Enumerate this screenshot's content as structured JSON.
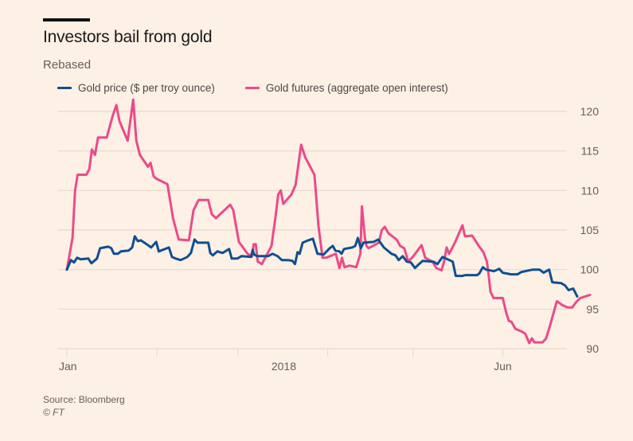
{
  "header": {
    "title": "Investors bail from gold",
    "subtitle": "Rebased"
  },
  "footer": {
    "source": "Source: Bloomberg",
    "copyright": "© FT"
  },
  "colors": {
    "background": "#fdf0e4",
    "gold_price": "#0f4f91",
    "gold_futures": "#ec4a8a",
    "grid": "#e6d9ce"
  },
  "chart_data": {
    "type": "line",
    "title": "Investors bail from gold",
    "subtitle": "Rebased",
    "xlabel": "",
    "ylabel": "",
    "ylim": [
      90,
      120
    ],
    "yticks": [
      90,
      95,
      100,
      105,
      110,
      115,
      120
    ],
    "y_axis_position": "right",
    "grid": true,
    "legend_position": "top-left",
    "x_domain": [
      0,
      100
    ],
    "x_tick_positions": [
      0,
      17.6,
      33.5,
      51.1,
      67.8,
      85.4
    ],
    "x_tick_labels": [
      {
        "at": 0,
        "label": "Jan"
      },
      {
        "at": 42.5,
        "label": "2018"
      },
      {
        "at": 85.4,
        "label": "Jun"
      }
    ],
    "series": [
      {
        "name": "Gold price ($ per troy ounce)",
        "color": "#0f4f91",
        "points": [
          [
            0,
            100
          ],
          [
            0.8,
            101.2
          ],
          [
            1.4,
            100.9
          ],
          [
            2.0,
            101.5
          ],
          [
            2.7,
            101.3
          ],
          [
            4.2,
            101.4
          ],
          [
            4.8,
            100.8
          ],
          [
            5.9,
            101.4
          ],
          [
            6.5,
            102.7
          ],
          [
            8.1,
            102.9
          ],
          [
            8.7,
            102.7
          ],
          [
            9.2,
            102.0
          ],
          [
            10.0,
            102.0
          ],
          [
            10.6,
            102.3
          ],
          [
            12.1,
            102.4
          ],
          [
            12.8,
            102.8
          ],
          [
            13.3,
            104.2
          ],
          [
            13.9,
            103.6
          ],
          [
            14.5,
            103.7
          ],
          [
            16.1,
            103.0
          ],
          [
            16.5,
            102.8
          ],
          [
            17.5,
            103.5
          ],
          [
            18.0,
            102.3
          ],
          [
            20.0,
            102.8
          ],
          [
            20.6,
            101.6
          ],
          [
            21.3,
            101.4
          ],
          [
            22.3,
            101.2
          ],
          [
            23.6,
            101.6
          ],
          [
            24.3,
            102.1
          ],
          [
            25.0,
            103.8
          ],
          [
            25.6,
            103.4
          ],
          [
            27.7,
            103.4
          ],
          [
            28.1,
            102.1
          ],
          [
            28.6,
            101.8
          ],
          [
            29.5,
            102.3
          ],
          [
            30.5,
            102.1
          ],
          [
            31.8,
            102.6
          ],
          [
            32.3,
            101.4
          ],
          [
            33.4,
            101.4
          ],
          [
            34.2,
            101.7
          ],
          [
            36.1,
            101.6
          ],
          [
            36.4,
            102.5
          ],
          [
            36.7,
            101.9
          ],
          [
            37.3,
            101.7
          ],
          [
            38.3,
            101.7
          ],
          [
            39.4,
            101.7
          ],
          [
            40.3,
            102.0
          ],
          [
            41.3,
            101.7
          ],
          [
            42.1,
            101.2
          ],
          [
            43.3,
            101.2
          ],
          [
            44.2,
            101.1
          ],
          [
            44.7,
            100.7
          ],
          [
            45.2,
            102.2
          ],
          [
            45.6,
            102.0
          ],
          [
            46.2,
            103.4
          ],
          [
            47.3,
            103.7
          ],
          [
            48.2,
            103.9
          ],
          [
            49.1,
            102.0
          ],
          [
            50.3,
            101.9
          ],
          [
            51.5,
            102.7
          ],
          [
            52.1,
            103.0
          ],
          [
            52.6,
            102.4
          ],
          [
            53.4,
            102.3
          ],
          [
            53.8,
            102.0
          ],
          [
            54.3,
            102.6
          ],
          [
            55.9,
            102.8
          ],
          [
            56.5,
            103.0
          ],
          [
            57.0,
            104.0
          ],
          [
            57.6,
            102.7
          ],
          [
            58.1,
            103.4
          ],
          [
            60.1,
            103.5
          ],
          [
            61.0,
            103.8
          ],
          [
            62.1,
            102.8
          ],
          [
            63.6,
            102.0
          ],
          [
            64.4,
            101.8
          ],
          [
            65.0,
            101.2
          ],
          [
            65.8,
            101.7
          ],
          [
            66.6,
            101.0
          ],
          [
            67.4,
            100.9
          ],
          [
            68.2,
            100.2
          ],
          [
            69.0,
            100.7
          ],
          [
            69.7,
            101.1
          ],
          [
            71.8,
            101.0
          ],
          [
            72.6,
            100.7
          ],
          [
            73.6,
            101.6
          ],
          [
            75.6,
            101.0
          ],
          [
            76.2,
            99.2
          ],
          [
            77.5,
            99.2
          ],
          [
            78.1,
            99.3
          ],
          [
            80.4,
            99.3
          ],
          [
            80.8,
            99.5
          ],
          [
            81.5,
            100.3
          ],
          [
            82.1,
            100.0
          ],
          [
            83.7,
            99.8
          ],
          [
            84.7,
            100.1
          ],
          [
            85.4,
            99.6
          ],
          [
            87.0,
            99.4
          ],
          [
            88.3,
            99.4
          ],
          [
            89.1,
            99.7
          ],
          [
            91.3,
            100.0
          ],
          [
            92.6,
            100.0
          ],
          [
            93.4,
            99.6
          ],
          [
            94.5,
            100.0
          ],
          [
            95.1,
            98.4
          ],
          [
            96.8,
            98.3
          ],
          [
            97.6,
            98.0
          ],
          [
            98.3,
            97.4
          ],
          [
            99.2,
            97.6
          ],
          [
            100,
            96.6
          ]
        ]
      },
      {
        "name": "Gold futures (aggregate open interest)",
        "color": "#ec4a8a",
        "points": [
          [
            0,
            100
          ],
          [
            1.1,
            104.0
          ],
          [
            1.6,
            110.0
          ],
          [
            2.1,
            112.0
          ],
          [
            3.8,
            112.0
          ],
          [
            4.4,
            112.7
          ],
          [
            4.9,
            115.2
          ],
          [
            5.5,
            114.5
          ],
          [
            6.1,
            116.7
          ],
          [
            7.8,
            116.7
          ],
          [
            9.0,
            119.5
          ],
          [
            9.7,
            120.8
          ],
          [
            10.3,
            118.8
          ],
          [
            11.9,
            116.3
          ],
          [
            13.0,
            121.5
          ],
          [
            13.6,
            116.3
          ],
          [
            14.3,
            114.5
          ],
          [
            15.9,
            113.0
          ],
          [
            16.4,
            113.5
          ],
          [
            17.0,
            111.8
          ],
          [
            17.5,
            111.5
          ],
          [
            19.7,
            110.8
          ],
          [
            20.8,
            106.5
          ],
          [
            21.9,
            103.8
          ],
          [
            23.9,
            103.7
          ],
          [
            24.8,
            107.5
          ],
          [
            25.8,
            108.8
          ],
          [
            27.7,
            108.8
          ],
          [
            28.4,
            107.0
          ],
          [
            29.2,
            106.5
          ],
          [
            32.0,
            108.2
          ],
          [
            32.6,
            107.5
          ],
          [
            33.7,
            103.5
          ],
          [
            35.4,
            102.0
          ],
          [
            36.3,
            101.7
          ],
          [
            36.6,
            103.2
          ],
          [
            37.0,
            103.2
          ],
          [
            37.4,
            101.0
          ],
          [
            38.2,
            100.7
          ],
          [
            40.1,
            103.0
          ],
          [
            40.9,
            106.8
          ],
          [
            41.4,
            109.5
          ],
          [
            41.9,
            110.0
          ],
          [
            42.4,
            108.3
          ],
          [
            44.0,
            109.5
          ],
          [
            44.8,
            110.7
          ],
          [
            45.3,
            113.0
          ],
          [
            45.9,
            115.8
          ],
          [
            46.7,
            114.2
          ],
          [
            48.5,
            112.0
          ],
          [
            49.3,
            105.5
          ],
          [
            50.1,
            101.5
          ],
          [
            50.8,
            101.5
          ],
          [
            52.7,
            102.0
          ],
          [
            53.4,
            100.2
          ],
          [
            53.9,
            101.5
          ],
          [
            54.4,
            100.3
          ],
          [
            55.4,
            100.5
          ],
          [
            56.7,
            100.3
          ],
          [
            57.5,
            102.0
          ],
          [
            57.8,
            108.0
          ],
          [
            58.4,
            104.0
          ],
          [
            58.7,
            103.0
          ],
          [
            59.1,
            102.7
          ],
          [
            61.1,
            103.4
          ],
          [
            61.7,
            105.0
          ],
          [
            62.3,
            105.4
          ],
          [
            63.0,
            104.6
          ],
          [
            64.6,
            103.8
          ],
          [
            65.3,
            103.0
          ],
          [
            66.1,
            102.7
          ],
          [
            66.9,
            101.0
          ],
          [
            67.9,
            101.7
          ],
          [
            69.5,
            103.1
          ],
          [
            70.2,
            101.5
          ],
          [
            71.6,
            101.0
          ],
          [
            72.4,
            100.2
          ],
          [
            73.4,
            99.9
          ],
          [
            73.9,
            101.0
          ],
          [
            74.4,
            102.8
          ],
          [
            74.9,
            102.0
          ],
          [
            76.1,
            103.5
          ],
          [
            77.5,
            105.6
          ],
          [
            78.0,
            104.2
          ],
          [
            79.4,
            104.3
          ],
          [
            80.7,
            103.0
          ],
          [
            81.6,
            102.2
          ],
          [
            82.3,
            101.0
          ],
          [
            82.6,
            99.5
          ],
          [
            83.0,
            97.2
          ],
          [
            83.6,
            96.4
          ],
          [
            85.4,
            96.4
          ],
          [
            86.1,
            94.5
          ],
          [
            86.6,
            93.5
          ],
          [
            87.1,
            93.4
          ],
          [
            87.9,
            92.5
          ],
          [
            89.0,
            92.2
          ],
          [
            89.8,
            91.9
          ],
          [
            90.6,
            90.7
          ],
          [
            91.1,
            91.3
          ],
          [
            91.6,
            90.8
          ],
          [
            93.2,
            90.8
          ],
          [
            93.9,
            91.3
          ],
          [
            94.7,
            93.0
          ],
          [
            96.0,
            96.0
          ],
          [
            97.1,
            95.5
          ],
          [
            98.1,
            95.2
          ],
          [
            99.0,
            95.2
          ],
          [
            99.8,
            95.9
          ],
          [
            100.6,
            96.4
          ],
          [
            102.5,
            96.8
          ]
        ]
      }
    ]
  }
}
